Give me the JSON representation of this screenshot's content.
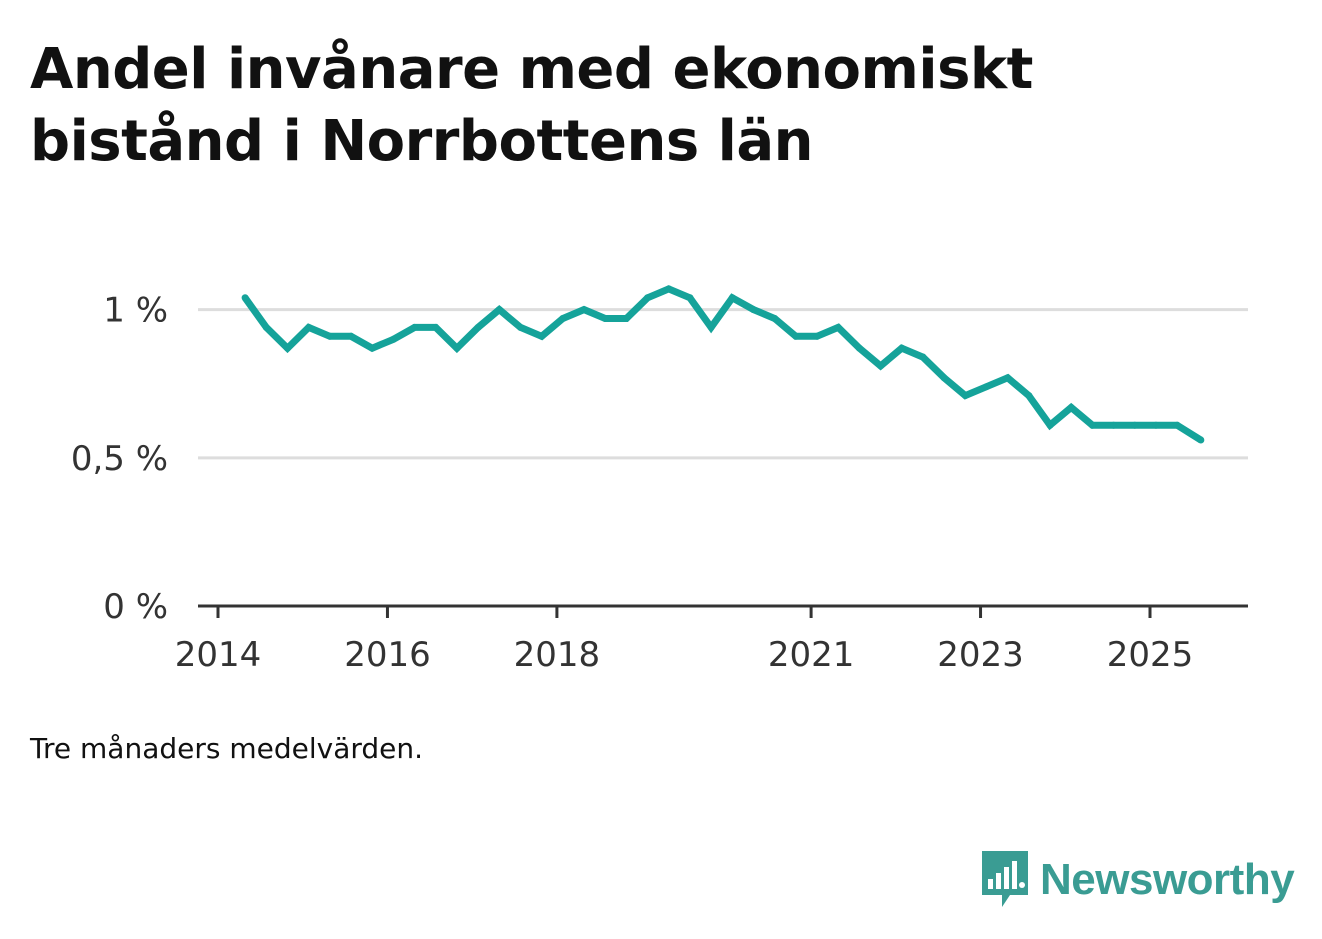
{
  "title_lines": [
    "Andel invånare med ekonomiskt",
    "bistånd i Norrbottens län"
  ],
  "note": "Tre månaders medelvärden.",
  "brand": {
    "name": "Newsworthy",
    "icon": "bar-chart-speech-bubble-icon",
    "color": "#3a9c93"
  },
  "colors": {
    "line": "#15a39a",
    "grid": "#dddddd",
    "axis": "#333333"
  },
  "chart_data": {
    "type": "line",
    "title": "Andel invånare med ekonomiskt bistånd i Norrbottens län",
    "xlabel": "",
    "ylabel": "",
    "x_ticks": [
      {
        "label": "2014",
        "value": 2014.0
      },
      {
        "label": "2016",
        "value": 2016.0
      },
      {
        "label": "2018",
        "value": 2018.0
      },
      {
        "label": "2021",
        "value": 2021.0
      },
      {
        "label": "2023",
        "value": 2023.0
      },
      {
        "label": "2025",
        "value": 2025.0
      }
    ],
    "y_ticks": [
      {
        "label": "0 %",
        "value": 0
      },
      {
        "label": "0,5 %",
        "value": 0.5
      },
      {
        "label": "1 %",
        "value": 1.0
      }
    ],
    "xlim": [
      2014.0,
      2026.2
    ],
    "ylim": [
      0,
      1.1
    ],
    "grid": true,
    "series": [
      {
        "name": "Andel invånare med ekonomiskt bistånd",
        "x": [
          2014.32,
          2014.57,
          2014.82,
          2015.07,
          2015.32,
          2015.57,
          2015.82,
          2016.07,
          2016.32,
          2016.57,
          2016.82,
          2017.07,
          2017.32,
          2017.57,
          2017.82,
          2018.07,
          2018.32,
          2018.57,
          2018.82,
          2019.07,
          2019.32,
          2019.57,
          2019.82,
          2020.07,
          2020.32,
          2020.57,
          2020.82,
          2021.07,
          2021.32,
          2021.57,
          2021.82,
          2022.07,
          2022.32,
          2022.57,
          2022.82,
          2023.07,
          2023.32,
          2023.57,
          2023.82,
          2024.07,
          2024.32,
          2024.57,
          2024.82,
          2025.07,
          2025.32,
          2025.6
        ],
        "values": [
          1.04,
          0.94,
          0.87,
          0.94,
          0.91,
          0.91,
          0.87,
          0.9,
          0.94,
          0.94,
          0.87,
          0.94,
          1.0,
          0.94,
          0.91,
          0.97,
          1.0,
          0.97,
          0.97,
          1.04,
          1.07,
          1.04,
          0.94,
          1.04,
          1.0,
          0.97,
          0.91,
          0.91,
          0.94,
          0.87,
          0.81,
          0.87,
          0.84,
          0.77,
          0.71,
          0.74,
          0.77,
          0.71,
          0.61,
          0.67,
          0.61,
          0.61,
          0.61,
          0.61,
          0.61,
          0.56
        ]
      }
    ]
  }
}
